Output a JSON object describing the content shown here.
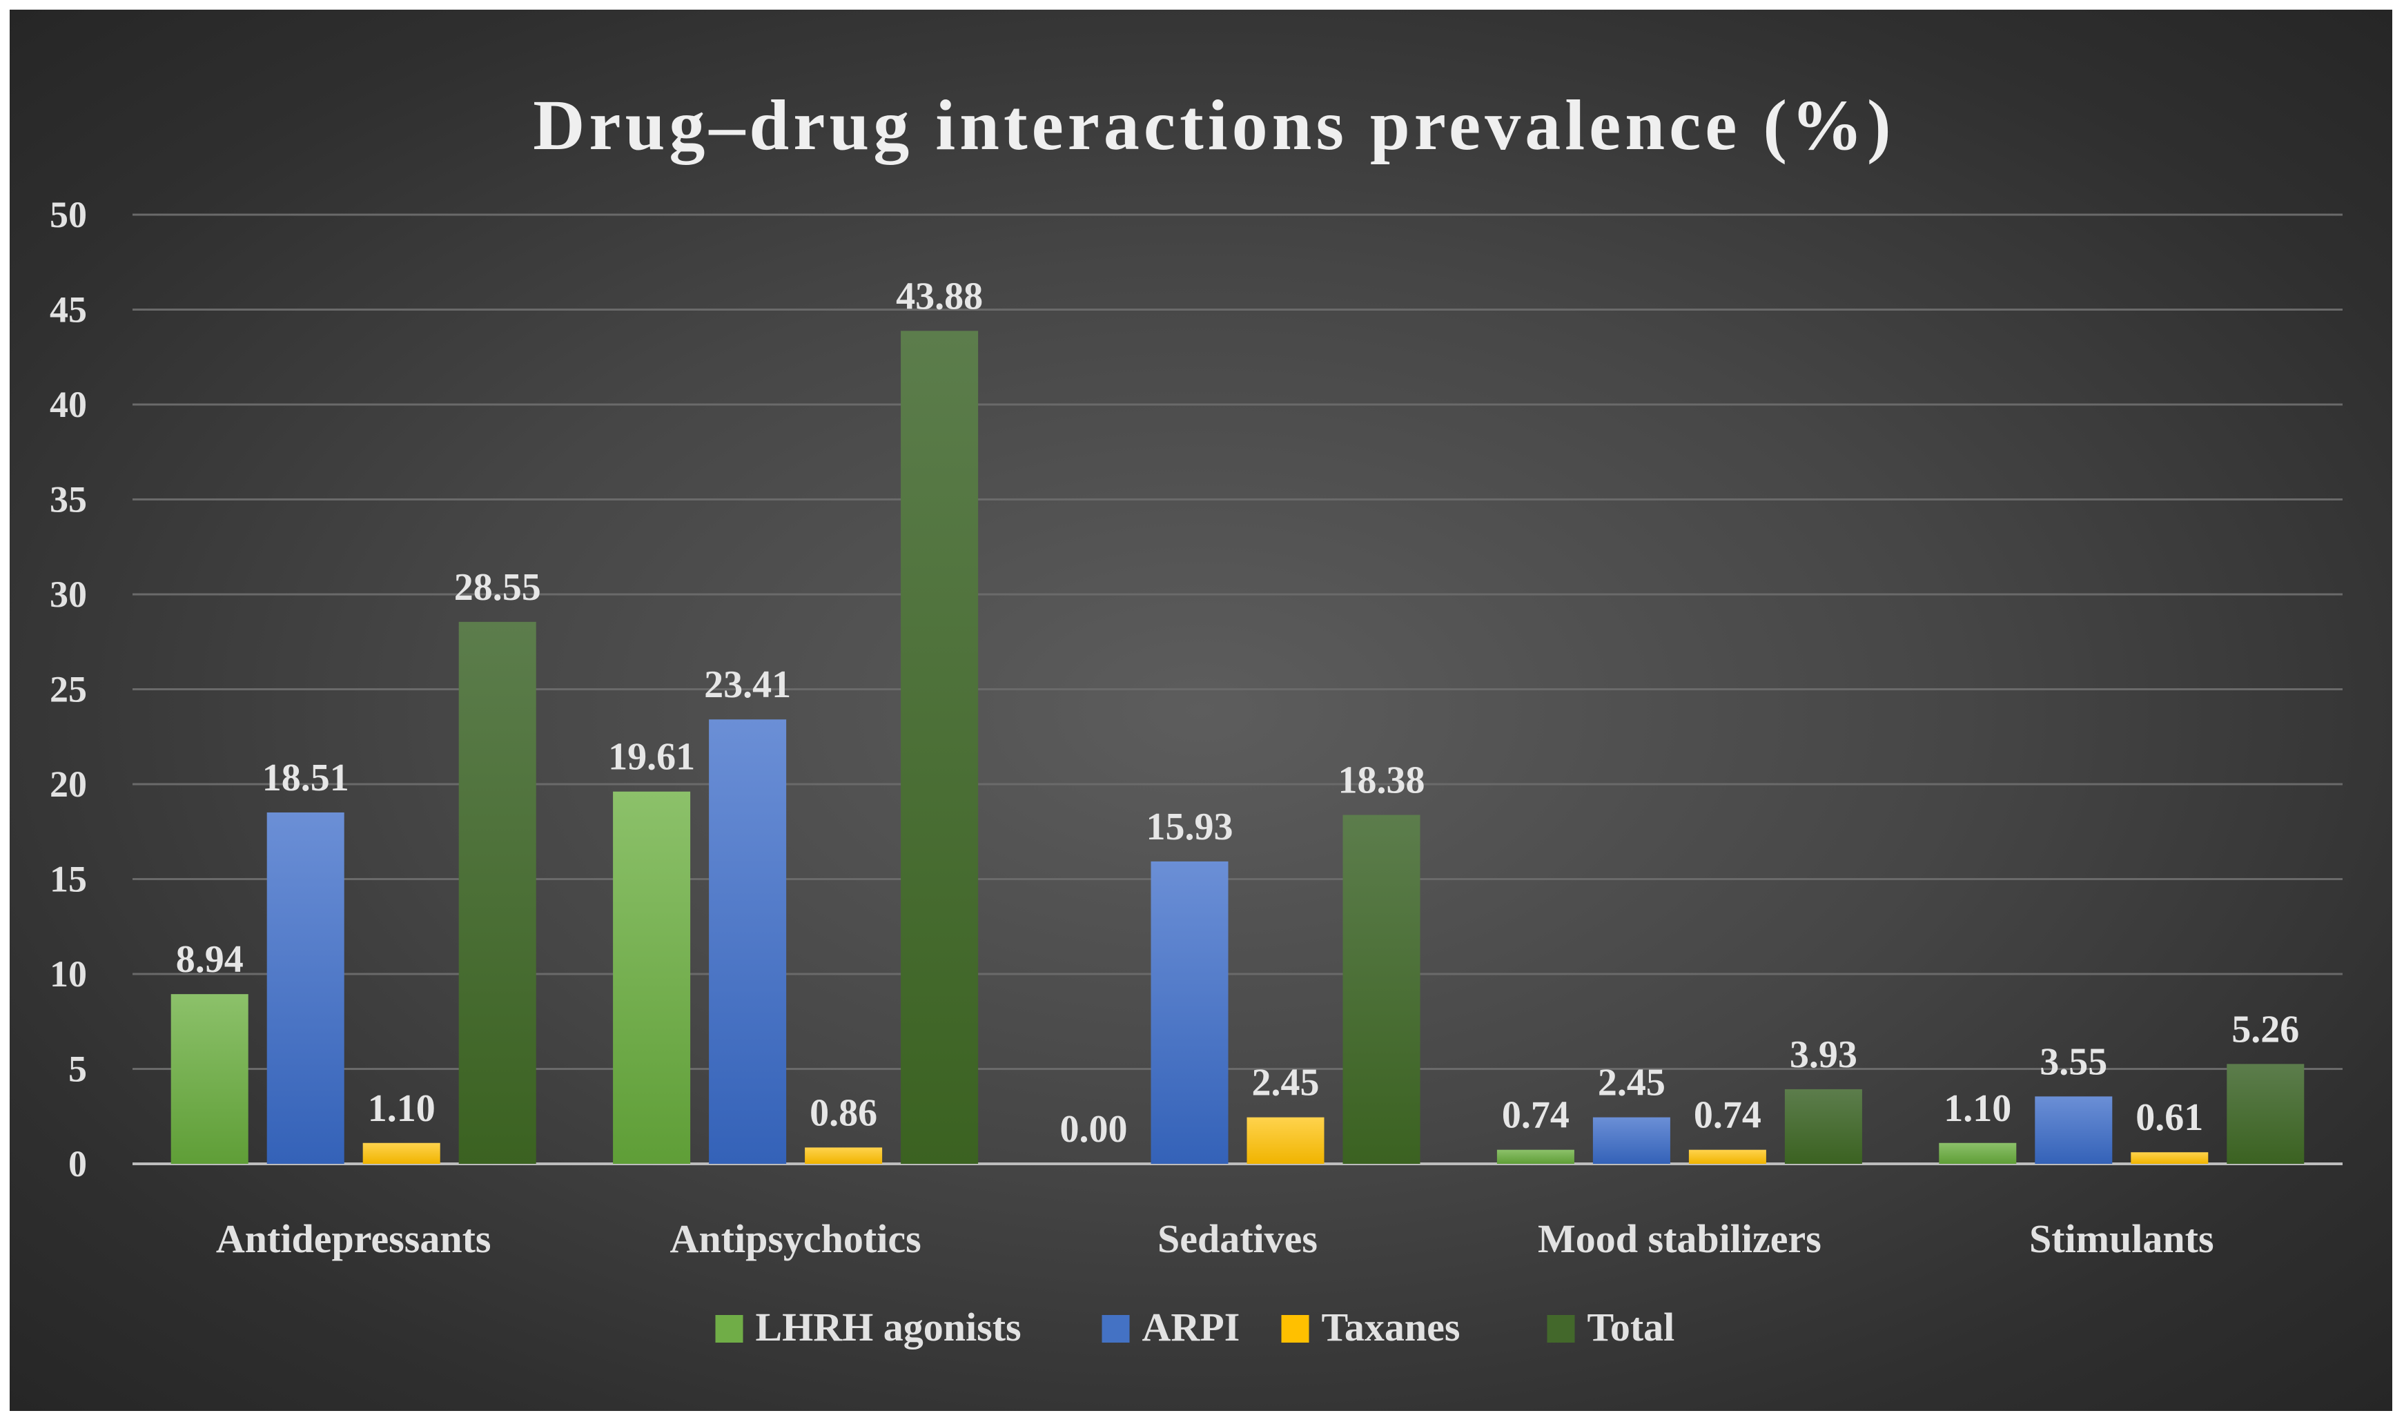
{
  "chart_data": {
    "type": "bar",
    "title": "Drug–drug interactions prevalence (%)",
    "categories": [
      "Antidepressants",
      "Antipsychotics",
      "Sedatives",
      "Mood stabilizers",
      "Stimulants"
    ],
    "series": [
      {
        "name": "LHRH agonists",
        "color": "#70ad47",
        "values": [
          8.94,
          19.61,
          0.0,
          0.74,
          1.1
        ],
        "labels": [
          "8.94",
          "19.61",
          "0.00",
          "0.74",
          "1.10"
        ]
      },
      {
        "name": "ARPI",
        "color": "#4472c4",
        "values": [
          18.51,
          23.41,
          15.93,
          2.45,
          3.55
        ],
        "labels": [
          "18.51",
          "23.41",
          "15.93",
          "2.45",
          "3.55"
        ]
      },
      {
        "name": "Taxanes",
        "color": "#ffc000",
        "values": [
          1.1,
          0.86,
          2.45,
          0.74,
          0.61
        ],
        "labels": [
          "1.10",
          "0.86",
          "2.45",
          "0.74",
          "0.61"
        ]
      },
      {
        "name": "Total",
        "color": "#43682b",
        "values": [
          28.55,
          43.88,
          18.38,
          3.93,
          5.26
        ],
        "labels": [
          "28.55",
          "43.88",
          "18.38",
          "3.93",
          "5.26"
        ]
      }
    ],
    "ylim": [
      0,
      50
    ],
    "yticks": [
      0,
      5,
      10,
      15,
      20,
      25,
      30,
      35,
      40,
      45,
      50
    ],
    "xlabel": "",
    "ylabel": "",
    "grid": true,
    "legend_position": "bottom"
  }
}
